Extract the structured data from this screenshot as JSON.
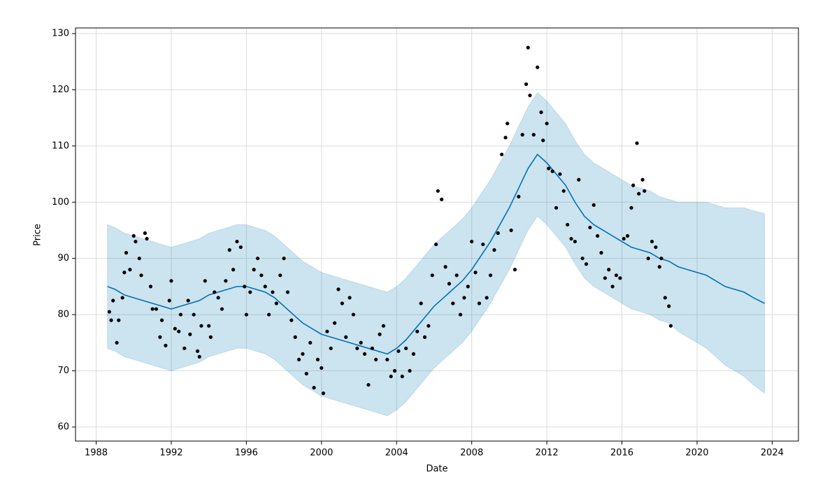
{
  "chart_data": {
    "type": "forecast",
    "xlabel": "Date",
    "ylabel": "Price",
    "xlim": [
      1986.9,
      2025.4
    ],
    "ylim": [
      57.5,
      131
    ],
    "xticks": [
      1988,
      1992,
      1996,
      2000,
      2004,
      2008,
      2012,
      2016,
      2020,
      2024
    ],
    "yticks": [
      60,
      70,
      80,
      90,
      100,
      110,
      120,
      130
    ],
    "grid": true,
    "forecast": {
      "color": "#0072b2",
      "x": [
        1988.6,
        1989,
        1989.5,
        1990,
        1990.5,
        1991,
        1991.5,
        1992,
        1992.5,
        1993,
        1993.5,
        1994,
        1994.5,
        1995,
        1995.5,
        1996,
        1996.5,
        1997,
        1997.5,
        1998,
        1998.5,
        1999,
        1999.5,
        2000,
        2000.5,
        2001,
        2001.5,
        2002,
        2002.5,
        2003,
        2003.5,
        2004,
        2004.5,
        2005,
        2005.5,
        2006,
        2006.5,
        2007,
        2007.5,
        2008,
        2008.5,
        2009,
        2009.5,
        2010,
        2010.5,
        2011,
        2011.5,
        2012,
        2012.5,
        2013,
        2013.5,
        2014,
        2014.5,
        2015,
        2015.5,
        2016,
        2016.5,
        2017,
        2017.5,
        2018,
        2018.5,
        2019,
        2019.5,
        2020,
        2020.5,
        2021,
        2021.5,
        2022,
        2022.5,
        2023,
        2023.6
      ],
      "values": [
        85,
        84.5,
        83.5,
        83,
        82.5,
        82,
        81.5,
        81,
        81.5,
        82,
        82.5,
        83.5,
        84,
        84.5,
        85,
        85,
        84.5,
        84,
        83,
        81.5,
        80,
        78.5,
        77.5,
        76.5,
        76,
        75.5,
        75,
        74.5,
        74,
        73.5,
        73,
        74,
        75.5,
        77.5,
        79.5,
        81.5,
        83,
        84.5,
        86,
        88,
        90.5,
        93,
        96,
        99,
        102.5,
        106,
        108.5,
        107,
        105,
        103,
        100,
        97.5,
        96,
        95,
        94,
        93,
        92,
        91.5,
        91,
        90,
        89.5,
        88.5,
        88,
        87.5,
        87,
        86,
        85,
        84.5,
        84,
        83,
        82
      ],
      "upper": [
        96,
        95.5,
        94.5,
        94,
        93.5,
        93,
        92.5,
        92,
        92.5,
        93,
        93.5,
        94.5,
        95,
        95.5,
        96,
        96,
        95.5,
        95,
        94,
        92.5,
        91,
        89.5,
        88.5,
        87.5,
        87,
        86.5,
        86,
        85.5,
        85,
        84.5,
        84,
        85,
        86.5,
        88.5,
        90.5,
        92.5,
        94,
        95.5,
        97,
        99,
        101.5,
        104,
        107,
        110,
        113.5,
        117,
        119.5,
        118,
        116,
        114,
        111,
        108.5,
        107,
        106,
        105,
        104,
        103,
        102.5,
        102,
        101,
        100.5,
        100,
        100,
        100,
        100,
        99.5,
        99,
        99,
        99,
        98.5,
        98
      ],
      "lower": [
        74,
        73.5,
        72.5,
        72,
        71.5,
        71,
        70.5,
        70,
        70.5,
        71,
        71.5,
        72.5,
        73,
        73.5,
        74,
        74,
        73.5,
        73,
        72,
        70.5,
        69,
        67.5,
        66.5,
        65.5,
        65,
        64.5,
        64,
        63.5,
        63,
        62.5,
        62,
        63,
        64.5,
        66.5,
        68.5,
        70.5,
        72,
        73.5,
        75,
        77,
        79.5,
        82,
        85,
        88,
        91.5,
        95,
        97.5,
        96,
        94,
        92,
        89,
        86.5,
        85,
        84,
        83,
        82,
        81,
        80.5,
        80,
        79,
        78.5,
        77,
        76,
        75,
        74,
        72.5,
        71,
        70,
        69,
        67.5,
        66
      ]
    },
    "points": {
      "color": "#000000",
      "x": [
        1988.7,
        1988.8,
        1988.9,
        1989.1,
        1989.2,
        1989.4,
        1989.5,
        1989.6,
        1989.8,
        1990.0,
        1990.1,
        1990.3,
        1990.4,
        1990.6,
        1990.7,
        1990.9,
        1991.0,
        1991.2,
        1991.4,
        1991.5,
        1991.7,
        1991.9,
        1992.0,
        1992.2,
        1992.4,
        1992.5,
        1992.7,
        1992.9,
        1993.0,
        1993.2,
        1993.4,
        1993.5,
        1993.6,
        1993.8,
        1994.0,
        1994.1,
        1994.3,
        1994.5,
        1994.7,
        1994.9,
        1995.1,
        1995.3,
        1995.5,
        1995.7,
        1995.9,
        1996.0,
        1996.2,
        1996.4,
        1996.6,
        1996.8,
        1997.0,
        1997.2,
        1997.4,
        1997.6,
        1997.8,
        1998.0,
        1998.2,
        1998.4,
        1998.6,
        1998.8,
        1999.0,
        1999.2,
        1999.4,
        1999.6,
        1999.8,
        2000.0,
        2000.1,
        2000.3,
        2000.5,
        2000.7,
        2000.9,
        2001.1,
        2001.3,
        2001.5,
        2001.7,
        2001.9,
        2002.1,
        2002.3,
        2002.5,
        2002.7,
        2002.9,
        2003.1,
        2003.3,
        2003.5,
        2003.7,
        2003.9,
        2004.1,
        2004.3,
        2004.5,
        2004.7,
        2004.9,
        2005.1,
        2005.3,
        2005.5,
        2005.7,
        2005.9,
        2006.1,
        2006.2,
        2006.4,
        2006.6,
        2006.8,
        2007.0,
        2007.2,
        2007.4,
        2007.6,
        2007.8,
        2008.0,
        2008.2,
        2008.4,
        2008.6,
        2008.8,
        2009.0,
        2009.2,
        2009.4,
        2009.6,
        2009.8,
        2009.9,
        2010.1,
        2010.3,
        2010.5,
        2010.7,
        2010.9,
        2011.0,
        2011.1,
        2011.3,
        2011.5,
        2011.7,
        2011.8,
        2012.0,
        2012.1,
        2012.3,
        2012.5,
        2012.7,
        2012.9,
        2013.1,
        2013.3,
        2013.5,
        2013.7,
        2013.9,
        2014.1,
        2014.3,
        2014.5,
        2014.7,
        2014.9,
        2015.1,
        2015.3,
        2015.5,
        2015.7,
        2015.9,
        2016.1,
        2016.3,
        2016.5,
        2016.6,
        2016.8,
        2016.9,
        2017.1,
        2017.2,
        2017.4,
        2017.6,
        2017.8,
        2018.0,
        2018.1,
        2018.3,
        2018.5,
        2018.6
      ],
      "y": [
        80.5,
        79,
        82.5,
        75,
        79,
        83,
        87.5,
        91,
        88,
        94,
        93,
        90,
        87,
        94.5,
        93.5,
        85,
        81,
        81,
        76,
        79,
        74.5,
        82.5,
        86,
        77.5,
        77,
        80,
        74,
        82.5,
        76.5,
        80,
        73.5,
        72.5,
        78,
        86,
        78,
        76,
        84,
        83,
        81,
        86,
        91.5,
        88,
        93,
        92,
        85,
        80,
        84,
        88,
        90,
        87,
        85,
        80,
        84,
        82,
        87,
        90,
        84,
        79,
        76,
        72,
        73,
        69.5,
        75,
        67,
        72,
        70.5,
        66,
        77,
        74,
        78.5,
        84.5,
        82,
        76,
        83,
        80,
        74,
        75,
        73,
        67.5,
        74,
        72,
        76.5,
        78,
        72,
        69,
        70,
        73.5,
        69,
        74,
        70,
        73,
        77,
        82,
        76,
        78,
        87,
        92.5,
        102,
        100.5,
        88.5,
        85.5,
        82,
        87,
        80,
        83,
        85,
        93,
        87.5,
        82,
        92.5,
        83,
        87,
        91.5,
        94.5,
        108.5,
        111.5,
        114,
        95,
        88,
        101,
        112,
        121,
        127.5,
        119,
        112,
        124,
        116,
        111,
        114,
        106,
        105.5,
        99,
        105,
        102,
        96,
        93.5,
        93,
        104,
        90,
        89,
        95.5,
        99.5,
        94,
        91,
        86.5,
        88,
        85,
        87,
        86.5,
        93.5,
        94,
        99,
        103,
        110.5,
        101.5,
        104,
        102,
        90,
        93,
        92,
        88.5,
        90,
        83,
        81.5,
        78
      ]
    }
  }
}
